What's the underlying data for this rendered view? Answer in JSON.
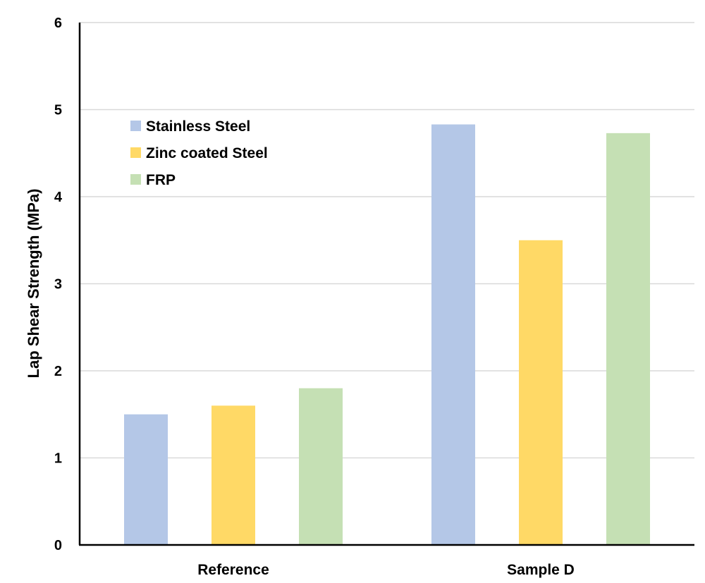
{
  "chart_data": {
    "type": "bar",
    "title": "",
    "xlabel": "",
    "ylabel": "Lap Shear Strength (MPa)",
    "ylim": [
      0,
      6
    ],
    "yticks": [
      "0",
      "1",
      "2",
      "3",
      "4",
      "5",
      "6"
    ],
    "grid": true,
    "legend_position": "top-left",
    "categories": [
      "Reference",
      "Sample D"
    ],
    "series": [
      {
        "name": "Stainless Steel",
        "color": "#b4c7e7",
        "values": [
          1.5,
          4.83
        ]
      },
      {
        "name": "Zinc coated Steel",
        "color": "#ffd966",
        "values": [
          1.6,
          3.5
        ]
      },
      {
        "name": "FRP",
        "color": "#c5e0b4",
        "values": [
          1.8,
          4.73
        ]
      }
    ]
  }
}
